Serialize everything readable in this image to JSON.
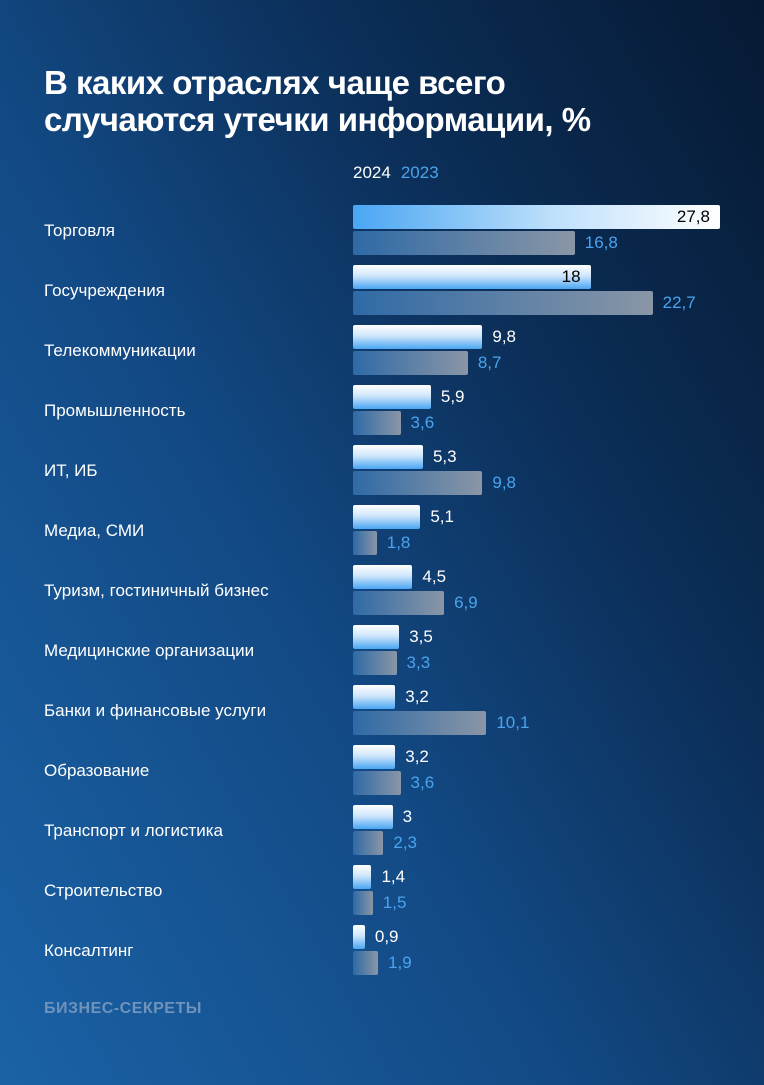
{
  "title_line1": "В каких отраслях чаще всего",
  "title_line2": "случаются утечки информации, %",
  "brand": "БИЗНЕС-СЕКРЕТЫ",
  "colors": {
    "series_2024": "#ffffff",
    "series_2023": "#4aa3ee"
  },
  "chart_data": {
    "type": "bar",
    "orientation": "horizontal",
    "title": "В каких отраслях чаще всего случаются утечки информации, %",
    "legend": [
      "2024",
      "2023"
    ],
    "legend_placement": "top",
    "categories": [
      "Торговля",
      "Госучреждения",
      "Телекоммуникации",
      "Промышленность",
      "ИТ, ИБ",
      "Медиа, СМИ",
      "Туризм, гостиничный бизнес",
      "Медицинские организации",
      "Банки и финансовые услуги",
      "Образование",
      "Транспорт и логистика",
      "Строительство",
      "Консалтинг"
    ],
    "series": [
      {
        "name": "2024",
        "values": [
          27.8,
          18,
          9.8,
          5.9,
          5.3,
          5.1,
          4.5,
          3.5,
          3.2,
          3.2,
          3,
          1.4,
          0.9
        ],
        "labels": [
          "27,8",
          "18",
          "9,8",
          "5,9",
          "5,3",
          "5,1",
          "4,5",
          "3,5",
          "3,2",
          "3,2",
          "3",
          "1,4",
          "0,9"
        ]
      },
      {
        "name": "2023",
        "values": [
          16.8,
          22.7,
          8.7,
          3.6,
          9.8,
          1.8,
          6.9,
          3.3,
          10.1,
          3.6,
          2.3,
          1.5,
          1.9
        ],
        "labels": [
          "16,8",
          "22,7",
          "8,7",
          "3,6",
          "9,8",
          "1,8",
          "6,9",
          "3,3",
          "10,1",
          "3,6",
          "2,3",
          "1,5",
          "1,9"
        ]
      }
    ],
    "grid": false
  }
}
